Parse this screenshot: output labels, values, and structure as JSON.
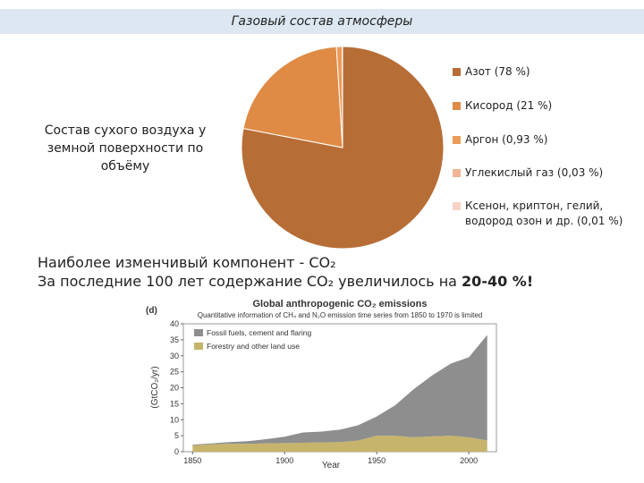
{
  "header": {
    "title": "Газовый состав атмосферы"
  },
  "caption": "Состав сухого воздуха у земной поверхности по объёму",
  "note": {
    "line1": "Наиболее изменчивый компонент - CO₂",
    "line2": "За последние 100 лет содержание CO₂ увеличилось на ",
    "line2_bold": "20-40 %!"
  },
  "chart_data": [
    {
      "type": "pie",
      "categories": [
        "Азот (78 %)",
        "Кисород (21 %)",
        "Аргон (0,93 %)",
        "Углекислый газ (0,03 %)",
        "Ксенон, криптон, гелий, водород озон и др. (0,01 %)"
      ],
      "values": [
        78,
        21,
        0.93,
        0.03,
        0.01
      ],
      "colors": [
        "#b76d36",
        "#df8b45",
        "#eb9b5a",
        "#f2b494",
        "#f7d3c4"
      ],
      "legend": "right"
    },
    {
      "type": "area",
      "panel": "(d)",
      "title": "Global anthropogenic CO₂ emissions",
      "subtitle": "Quantitative information of CH₄ and N₂O emission time series from 1850 to 1970 is limited",
      "xlabel": "Year",
      "ylabel": "(GtCO₂/yr)",
      "stacked": true,
      "legend": "upper left",
      "x": [
        1850,
        1860,
        1870,
        1880,
        1890,
        1900,
        1910,
        1920,
        1930,
        1940,
        1950,
        1960,
        1970,
        1980,
        1990,
        2000,
        2010
      ],
      "series": [
        {
          "name": "Forestry and other land use",
          "color": "#c6b46c",
          "values": [
            2,
            2.3,
            2.5,
            2.5,
            2.6,
            2.7,
            2.8,
            2.9,
            3,
            3.5,
            5,
            5,
            4.5,
            4.8,
            5,
            4.5,
            3.5
          ]
        },
        {
          "name": "Fossil fuels, cement and flaring",
          "color": "#8e8e8e",
          "values": [
            0.2,
            0.3,
            0.5,
            0.8,
            1.3,
            2,
            3.2,
            3.4,
            3.9,
            4.8,
            6,
            9.5,
            15,
            19,
            22.5,
            25,
            33
          ]
        }
      ],
      "xlim": [
        1845,
        2015
      ],
      "ylim": [
        0,
        40
      ],
      "xticks": [
        1850,
        1900,
        1950,
        2000
      ],
      "yticks": [
        0,
        5,
        10,
        15,
        20,
        25,
        30,
        35,
        40
      ]
    }
  ]
}
